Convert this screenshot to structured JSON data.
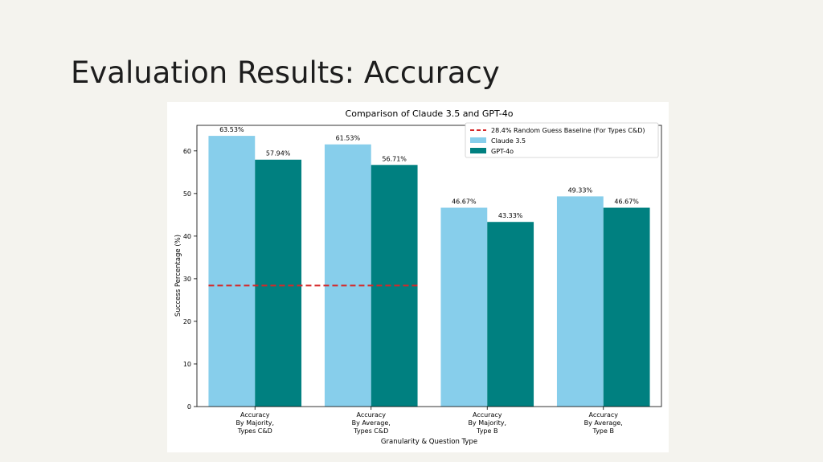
{
  "slide": {
    "title": "Evaluation Results: Accuracy"
  },
  "chart_data": {
    "type": "bar",
    "title": "Comparison of Claude 3.5 and GPT-4o",
    "xlabel": "Granularity & Question Type",
    "ylabel": "Success Percentage (%)",
    "ylim": [
      0,
      66
    ],
    "yticks": [
      0,
      10,
      20,
      30,
      40,
      50,
      60
    ],
    "categories": [
      [
        "Accuracy",
        "By Majority,",
        "Types C&D"
      ],
      [
        "Accuracy",
        "By Average,",
        "Types C&D"
      ],
      [
        "Accuracy",
        "By Majority,",
        "Type B"
      ],
      [
        "Accuracy",
        "By Average,",
        "Type B"
      ]
    ],
    "series": [
      {
        "name": "Claude 3.5",
        "color": "#87ceeb",
        "values": [
          63.53,
          61.53,
          46.67,
          49.33
        ],
        "labels": [
          "63.53%",
          "61.53%",
          "46.67%",
          "49.33%"
        ]
      },
      {
        "name": "GPT-4o",
        "color": "#008080",
        "values": [
          57.94,
          56.71,
          43.33,
          46.67
        ],
        "labels": [
          "57.94%",
          "56.71%",
          "43.33%",
          "46.67%"
        ]
      }
    ],
    "baseline": {
      "name": "28.4% Random Guess Baseline (For Types C&D)",
      "value": 28.4,
      "color": "#d62728",
      "spans_categories": [
        0,
        1
      ]
    },
    "legend_position": "top-right",
    "grid": false
  }
}
